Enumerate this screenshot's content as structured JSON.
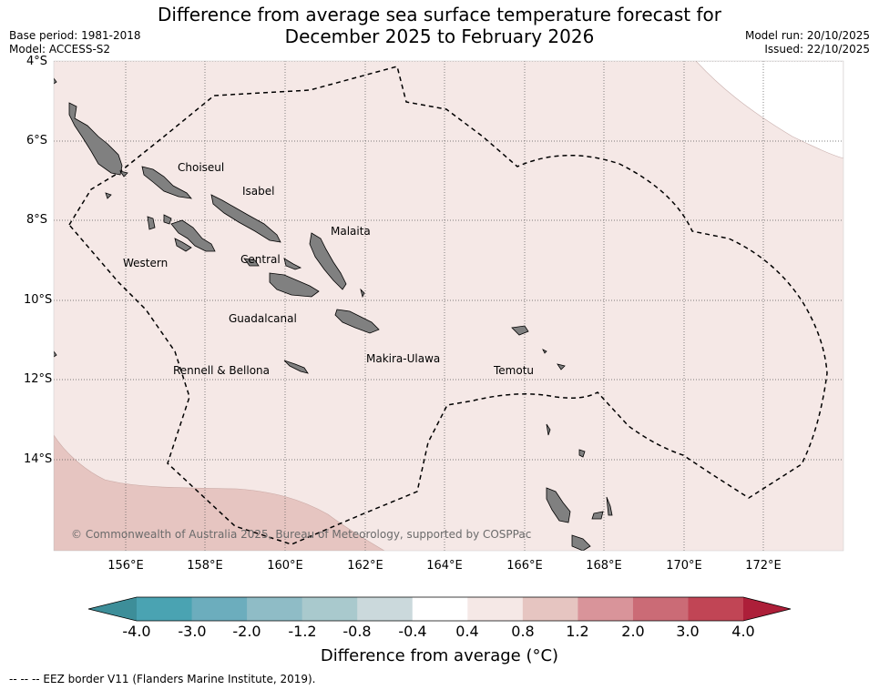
{
  "title_line1": "Difference from average sea surface temperature forecast for",
  "title_line2": "December 2025 to February 2026",
  "base_period": "Base period: 1981-2018",
  "model": "Model: ACCESS-S2",
  "model_run": "Model run: 20/10/2025",
  "issued": "Issued: 22/10/2025",
  "map": {
    "lat_labels": [
      "4°S",
      "6°S",
      "8°S",
      "10°S",
      "12°S",
      "14°S"
    ],
    "lon_labels": [
      "156°E",
      "158°E",
      "160°E",
      "162°E",
      "164°E",
      "166°E",
      "168°E",
      "170°E",
      "172°E"
    ],
    "regions": [
      "Choiseul",
      "Isabel",
      "Malaita",
      "Western",
      "Central",
      "Guadalcanal",
      "Makira-Ulawa",
      "Rennell & Bellona",
      "Temotu"
    ],
    "copyright": "© Commonwealth of Australia 2025, Bureau of Meteorology, supported by COSPPac",
    "colors": {
      "ocean_light": "#f5e8e6",
      "ocean_warm": "#e6c5c1",
      "land": "#808080"
    }
  },
  "colorbar": {
    "ticks": [
      "-4.0",
      "-3.0",
      "-2.0",
      "-1.2",
      "-0.8",
      "-0.4",
      "0.4",
      "0.8",
      "1.2",
      "2.0",
      "3.0",
      "4.0"
    ],
    "colors": [
      "#3d8e99",
      "#4aa3b2",
      "#6cadbd",
      "#8fbcc6",
      "#a9c9cd",
      "#cbd9dc",
      "#ffffff",
      "#f5e8e6",
      "#e6c5c1",
      "#d9949a",
      "#cb6b76",
      "#c14555",
      "#ad1f39"
    ],
    "title": "Difference from average ( $^\\circ$C)",
    "title_display": "Difference from average (°C)"
  },
  "footnote": "--  --  -- EEZ border V11 (Flanders Marine Institute, 2019)."
}
